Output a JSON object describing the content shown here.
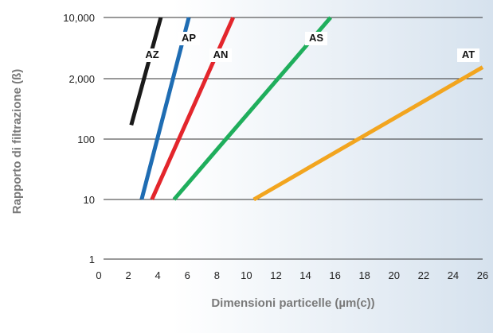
{
  "chart_data": {
    "type": "line",
    "xlabel": "Dimensioni particelle (µm(c))",
    "ylabel": "Rapporto di filtrazione (ß)",
    "xlim": [
      0,
      26
    ],
    "x_ticks": [
      "0",
      "2",
      "4",
      "6",
      "8",
      "10",
      "12",
      "14",
      "16",
      "18",
      "20",
      "22",
      "24",
      "26"
    ],
    "y_scale": "log",
    "y_ticks": [
      {
        "value": 1,
        "label": "1"
      },
      {
        "value": 10,
        "label": "10"
      },
      {
        "value": 100,
        "label": "100"
      },
      {
        "value": 2000,
        "label": "2,000"
      },
      {
        "value": 10000,
        "label": "10,000"
      }
    ],
    "grid": "horizontal",
    "colors": {
      "AZ": "#1a1a1a",
      "AP": "#1f6db3",
      "AN": "#e3262c",
      "AS": "#1fae5c",
      "AT": "#f2a51f",
      "background_right": "#d6e2ee"
    },
    "series": [
      {
        "name": "AZ",
        "x": [
          2.2,
          4.2
        ],
        "y": [
          200,
          10000
        ]
      },
      {
        "name": "AP",
        "x": [
          2.9,
          6.1
        ],
        "y": [
          10,
          10000
        ]
      },
      {
        "name": "AN",
        "x": [
          3.6,
          9.1
        ],
        "y": [
          10,
          10000
        ]
      },
      {
        "name": "AS",
        "x": [
          5.1,
          15.7
        ],
        "y": [
          10,
          10000
        ]
      },
      {
        "name": "AT",
        "x": [
          10.5,
          26
        ],
        "y": [
          10,
          2700
        ]
      }
    ]
  }
}
